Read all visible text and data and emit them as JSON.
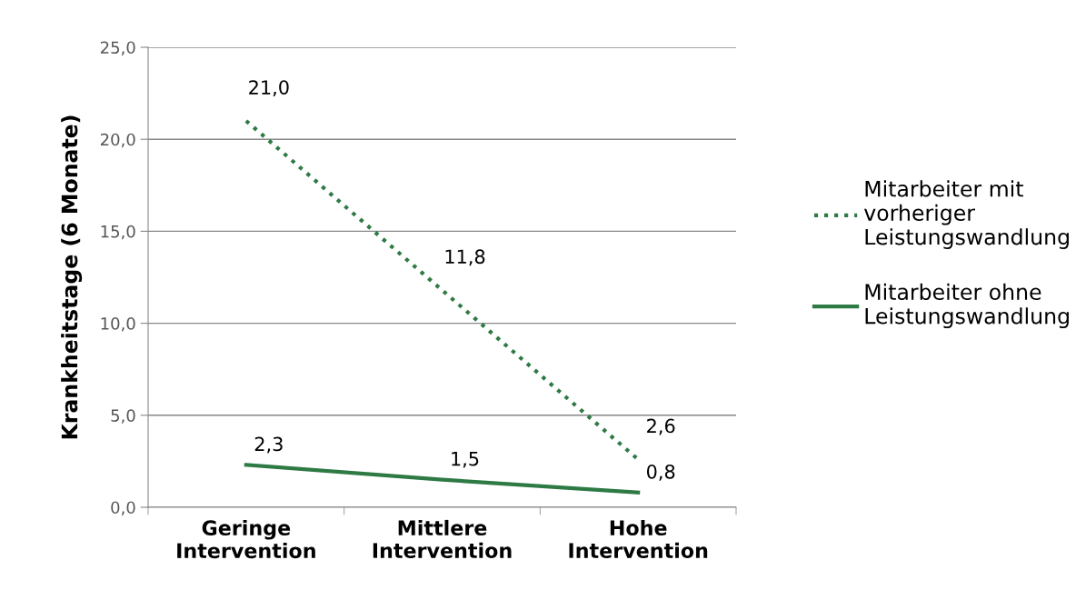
{
  "chart_data": {
    "type": "line",
    "categories": [
      "Geringe\nIntervention",
      "Mittlere\nIntervention",
      "Hohe\nIntervention"
    ],
    "ylabel": "Krankheitstage (6 Monate)",
    "ylim": [
      0,
      25
    ],
    "yticks": [
      {
        "value": 0,
        "label": "0,0"
      },
      {
        "value": 5,
        "label": "5,0"
      },
      {
        "value": 10,
        "label": "10,0"
      },
      {
        "value": 15,
        "label": "15,0"
      },
      {
        "value": 20,
        "label": "20,0"
      },
      {
        "value": 25,
        "label": "25,0"
      }
    ],
    "grid": "y",
    "legend": "right",
    "marker": "none",
    "series": [
      {
        "name": "Mitarbeiter mit\nvorheriger\nLeistungswandlung",
        "color": "#2e7a45",
        "line_style": "dotted",
        "values": [
          21.0,
          11.8,
          2.6
        ],
        "value_labels": [
          "21,0",
          "11,8",
          "2,6"
        ]
      },
      {
        "name": "Mitarbeiter ohne\nLeistungswandlung",
        "color": "#2e7a45",
        "line_style": "solid",
        "values": [
          2.3,
          1.5,
          0.8
        ],
        "value_labels": [
          "2,3",
          "1,5",
          "0,8"
        ]
      }
    ]
  }
}
